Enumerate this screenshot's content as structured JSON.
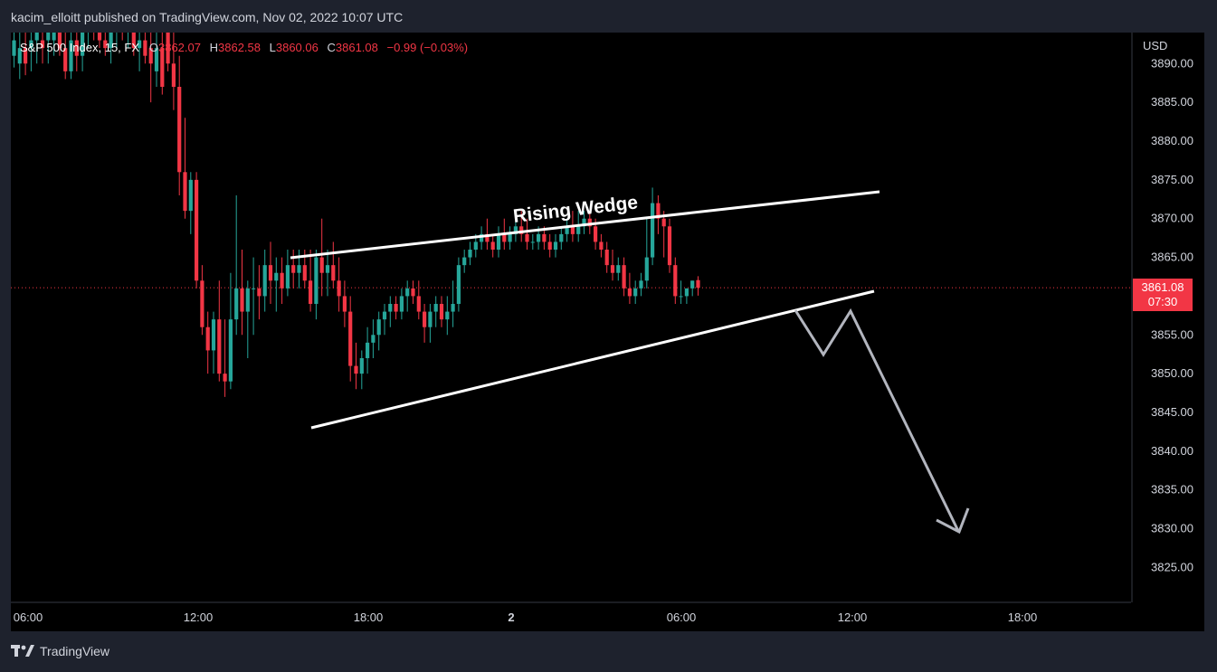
{
  "header": {
    "publish_info": "kacim_elloitt published on TradingView.com, Nov 02, 2022 10:07 UTC"
  },
  "legend": {
    "symbol": "S&P 500 Index, 15, FX",
    "open_label": "O",
    "open": "3862.07",
    "high_label": "H",
    "high": "3862.58",
    "low_label": "L",
    "low": "3860.06",
    "close_label": "C",
    "close": "3861.08",
    "change": "−0.99 (−0.03%)"
  },
  "price_tag": {
    "price": "3861.08",
    "countdown": "07:30"
  },
  "footer": {
    "brand": "TradingView"
  },
  "colors": {
    "up": "#26a69a",
    "down": "#f23645",
    "background": "#000000",
    "projection": "#b2b5be"
  },
  "chart_data": {
    "type": "candlestick",
    "currency_label": "USD",
    "y_ticks": [
      3890,
      3885,
      3880,
      3875,
      3870,
      3865,
      3855,
      3850,
      3845,
      3840,
      3835,
      3830,
      3825
    ],
    "ylim": [
      3820.5,
      3894
    ],
    "x_ticks": [
      "06:00",
      "12:00",
      "18:00",
      "2",
      "06:00",
      "12:00",
      "18:00"
    ],
    "current_price": 3861.08,
    "annotation": "Rising Wedge",
    "candles": [
      {
        "o": 3891,
        "h": 3896,
        "l": 3889.5,
        "c": 3893
      },
      {
        "o": 3890,
        "h": 3895,
        "l": 3888,
        "c": 3892
      },
      {
        "o": 3892,
        "h": 3896,
        "l": 3888.5,
        "c": 3890
      },
      {
        "o": 3892,
        "h": 3895,
        "l": 3889,
        "c": 3893
      },
      {
        "o": 3893,
        "h": 3896,
        "l": 3890,
        "c": 3894
      },
      {
        "o": 3893,
        "h": 3896,
        "l": 3890,
        "c": 3892
      },
      {
        "o": 3893,
        "h": 3896,
        "l": 3890,
        "c": 3894
      },
      {
        "o": 3893,
        "h": 3896,
        "l": 3891,
        "c": 3894
      },
      {
        "o": 3894,
        "h": 3896,
        "l": 3891,
        "c": 3892
      },
      {
        "o": 3892,
        "h": 3895,
        "l": 3888,
        "c": 3889
      },
      {
        "o": 3889,
        "h": 3894,
        "l": 3888,
        "c": 3893
      },
      {
        "o": 3893,
        "h": 3896,
        "l": 3889,
        "c": 3891
      },
      {
        "o": 3891,
        "h": 3896,
        "l": 3889,
        "c": 3894
      },
      {
        "o": 3894,
        "h": 3896,
        "l": 3892,
        "c": 3895
      },
      {
        "o": 3895,
        "h": 3896,
        "l": 3893,
        "c": 3894
      },
      {
        "o": 3894,
        "h": 3896,
        "l": 3892,
        "c": 3893
      },
      {
        "o": 3893,
        "h": 3896,
        "l": 3891,
        "c": 3892
      },
      {
        "o": 3892,
        "h": 3896,
        "l": 3890,
        "c": 3894
      },
      {
        "o": 3894,
        "h": 3896,
        "l": 3892,
        "c": 3895
      },
      {
        "o": 3895,
        "h": 3896,
        "l": 3893,
        "c": 3894
      },
      {
        "o": 3894,
        "h": 3896,
        "l": 3892,
        "c": 3895
      },
      {
        "o": 3895,
        "h": 3896,
        "l": 3891,
        "c": 3892
      },
      {
        "o": 3892,
        "h": 3895,
        "l": 3889,
        "c": 3893
      },
      {
        "o": 3893,
        "h": 3896,
        "l": 3890,
        "c": 3891
      },
      {
        "o": 3892,
        "h": 3894,
        "l": 3885,
        "c": 3890
      },
      {
        "o": 3889,
        "h": 3894,
        "l": 3887,
        "c": 3892
      },
      {
        "o": 3892,
        "h": 3894,
        "l": 3886,
        "c": 3887
      },
      {
        "o": 3894,
        "h": 3896,
        "l": 3889,
        "c": 3890
      },
      {
        "o": 3890,
        "h": 3894,
        "l": 3884,
        "c": 3887
      },
      {
        "o": 3887,
        "h": 3891,
        "l": 3873,
        "c": 3876
      },
      {
        "o": 3876,
        "h": 3883,
        "l": 3870,
        "c": 3871
      },
      {
        "o": 3871,
        "h": 3876,
        "l": 3868,
        "c": 3875
      },
      {
        "o": 3875,
        "h": 3876,
        "l": 3861,
        "c": 3862
      },
      {
        "o": 3862,
        "h": 3864,
        "l": 3855,
        "c": 3856
      },
      {
        "o": 3856,
        "h": 3858,
        "l": 3850,
        "c": 3853
      },
      {
        "o": 3853,
        "h": 3858,
        "l": 3850,
        "c": 3857
      },
      {
        "o": 3857,
        "h": 3862,
        "l": 3849,
        "c": 3850
      },
      {
        "o": 3850,
        "h": 3857,
        "l": 3847,
        "c": 3849
      },
      {
        "o": 3849,
        "h": 3863,
        "l": 3848,
        "c": 3857
      },
      {
        "o": 3857,
        "h": 3873,
        "l": 3855,
        "c": 3861
      },
      {
        "o": 3861,
        "h": 3866,
        "l": 3855,
        "c": 3858
      },
      {
        "o": 3858,
        "h": 3862,
        "l": 3852,
        "c": 3861
      },
      {
        "o": 3861,
        "h": 3865,
        "l": 3855,
        "c": 3861
      },
      {
        "o": 3861,
        "h": 3864,
        "l": 3857,
        "c": 3860
      },
      {
        "o": 3860,
        "h": 3866,
        "l": 3858,
        "c": 3864
      },
      {
        "o": 3864,
        "h": 3867,
        "l": 3859,
        "c": 3862
      },
      {
        "o": 3862,
        "h": 3865,
        "l": 3858,
        "c": 3863
      },
      {
        "o": 3863,
        "h": 3865,
        "l": 3859,
        "c": 3861
      },
      {
        "o": 3861,
        "h": 3866,
        "l": 3860,
        "c": 3864
      },
      {
        "o": 3864,
        "h": 3866,
        "l": 3861,
        "c": 3863
      },
      {
        "o": 3863,
        "h": 3866,
        "l": 3861,
        "c": 3864
      },
      {
        "o": 3864,
        "h": 3866,
        "l": 3861,
        "c": 3862
      },
      {
        "o": 3862,
        "h": 3866,
        "l": 3858,
        "c": 3859
      },
      {
        "o": 3859,
        "h": 3866,
        "l": 3857,
        "c": 3865
      },
      {
        "o": 3865,
        "h": 3870,
        "l": 3860,
        "c": 3863
      },
      {
        "o": 3863,
        "h": 3866,
        "l": 3860,
        "c": 3864
      },
      {
        "o": 3864,
        "h": 3867,
        "l": 3861,
        "c": 3862
      },
      {
        "o": 3862,
        "h": 3865,
        "l": 3858,
        "c": 3860
      },
      {
        "o": 3860,
        "h": 3862,
        "l": 3856,
        "c": 3858
      },
      {
        "o": 3858,
        "h": 3860,
        "l": 3849,
        "c": 3851
      },
      {
        "o": 3851,
        "h": 3854,
        "l": 3848,
        "c": 3850
      },
      {
        "o": 3850,
        "h": 3853,
        "l": 3848,
        "c": 3852
      },
      {
        "o": 3852,
        "h": 3856,
        "l": 3850,
        "c": 3854
      },
      {
        "o": 3854,
        "h": 3857,
        "l": 3852,
        "c": 3855
      },
      {
        "o": 3855,
        "h": 3858,
        "l": 3853,
        "c": 3857
      },
      {
        "o": 3857,
        "h": 3859,
        "l": 3855,
        "c": 3858
      },
      {
        "o": 3858,
        "h": 3860,
        "l": 3856,
        "c": 3859
      },
      {
        "o": 3859,
        "h": 3860,
        "l": 3857,
        "c": 3858
      },
      {
        "o": 3858,
        "h": 3861,
        "l": 3857,
        "c": 3860
      },
      {
        "o": 3860,
        "h": 3862,
        "l": 3858,
        "c": 3861
      },
      {
        "o": 3861,
        "h": 3862,
        "l": 3859,
        "c": 3860
      },
      {
        "o": 3860,
        "h": 3862,
        "l": 3857,
        "c": 3858
      },
      {
        "o": 3858,
        "h": 3859,
        "l": 3854,
        "c": 3856
      },
      {
        "o": 3856,
        "h": 3859,
        "l": 3854,
        "c": 3858
      },
      {
        "o": 3858,
        "h": 3860,
        "l": 3856,
        "c": 3859
      },
      {
        "o": 3859,
        "h": 3860,
        "l": 3856,
        "c": 3857
      },
      {
        "o": 3857,
        "h": 3860,
        "l": 3855,
        "c": 3858
      },
      {
        "o": 3858,
        "h": 3862,
        "l": 3856,
        "c": 3859
      },
      {
        "o": 3859,
        "h": 3865,
        "l": 3858,
        "c": 3864
      },
      {
        "o": 3864,
        "h": 3866,
        "l": 3863,
        "c": 3865
      },
      {
        "o": 3865,
        "h": 3867,
        "l": 3864,
        "c": 3866
      },
      {
        "o": 3866,
        "h": 3868,
        "l": 3865,
        "c": 3867
      },
      {
        "o": 3867,
        "h": 3869,
        "l": 3866,
        "c": 3868
      },
      {
        "o": 3868,
        "h": 3870,
        "l": 3866,
        "c": 3867
      },
      {
        "o": 3867,
        "h": 3868,
        "l": 3865,
        "c": 3866
      },
      {
        "o": 3866,
        "h": 3869,
        "l": 3865,
        "c": 3868
      },
      {
        "o": 3868,
        "h": 3870,
        "l": 3866,
        "c": 3867
      },
      {
        "o": 3867,
        "h": 3869,
        "l": 3866,
        "c": 3868
      },
      {
        "o": 3868,
        "h": 3870,
        "l": 3867,
        "c": 3869
      },
      {
        "o": 3869,
        "h": 3871,
        "l": 3867,
        "c": 3868
      },
      {
        "o": 3868,
        "h": 3870,
        "l": 3866,
        "c": 3867
      },
      {
        "o": 3867,
        "h": 3868,
        "l": 3866,
        "c": 3867
      },
      {
        "o": 3867,
        "h": 3869,
        "l": 3866,
        "c": 3868
      },
      {
        "o": 3868,
        "h": 3869,
        "l": 3866,
        "c": 3867
      },
      {
        "o": 3867,
        "h": 3868,
        "l": 3865,
        "c": 3866
      },
      {
        "o": 3866,
        "h": 3868,
        "l": 3865,
        "c": 3867
      },
      {
        "o": 3867,
        "h": 3869,
        "l": 3866,
        "c": 3868
      },
      {
        "o": 3868,
        "h": 3870,
        "l": 3867,
        "c": 3869
      },
      {
        "o": 3869,
        "h": 3871,
        "l": 3867,
        "c": 3868
      },
      {
        "o": 3868,
        "h": 3871,
        "l": 3867,
        "c": 3869
      },
      {
        "o": 3869,
        "h": 3871,
        "l": 3868,
        "c": 3870
      },
      {
        "o": 3870,
        "h": 3871,
        "l": 3868,
        "c": 3869
      },
      {
        "o": 3869,
        "h": 3870,
        "l": 3866,
        "c": 3867
      },
      {
        "o": 3867,
        "h": 3868,
        "l": 3865,
        "c": 3866
      },
      {
        "o": 3866,
        "h": 3867,
        "l": 3863,
        "c": 3864
      },
      {
        "o": 3864,
        "h": 3866,
        "l": 3862,
        "c": 3863
      },
      {
        "o": 3863,
        "h": 3865,
        "l": 3862,
        "c": 3864
      },
      {
        "o": 3864,
        "h": 3865,
        "l": 3860,
        "c": 3861
      },
      {
        "o": 3861,
        "h": 3863,
        "l": 3859,
        "c": 3860
      },
      {
        "o": 3860,
        "h": 3862,
        "l": 3859,
        "c": 3861
      },
      {
        "o": 3861,
        "h": 3863,
        "l": 3860,
        "c": 3862
      },
      {
        "o": 3862,
        "h": 3870,
        "l": 3861,
        "c": 3865
      },
      {
        "o": 3865,
        "h": 3874,
        "l": 3864,
        "c": 3872
      },
      {
        "o": 3872,
        "h": 3873,
        "l": 3868,
        "c": 3870
      },
      {
        "o": 3870,
        "h": 3871,
        "l": 3865,
        "c": 3869
      },
      {
        "o": 3869,
        "h": 3870,
        "l": 3863,
        "c": 3864
      },
      {
        "o": 3864,
        "h": 3865,
        "l": 3859,
        "c": 3860
      },
      {
        "o": 3860,
        "h": 3862,
        "l": 3859,
        "c": 3860
      },
      {
        "o": 3860,
        "h": 3861,
        "l": 3859,
        "c": 3861
      },
      {
        "o": 3861,
        "h": 3862,
        "l": 3860,
        "c": 3862
      },
      {
        "o": 3862.07,
        "h": 3862.58,
        "l": 3860.06,
        "c": 3861.08
      }
    ]
  }
}
